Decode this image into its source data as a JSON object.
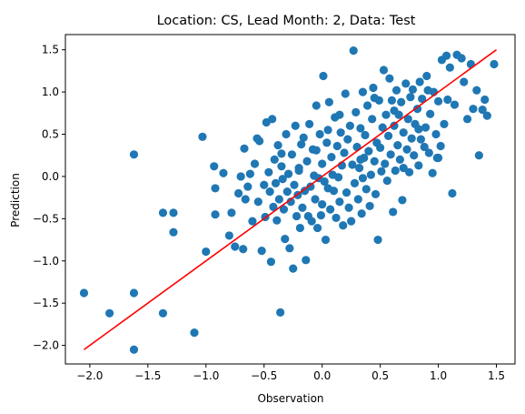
{
  "chart_data": {
    "type": "scatter",
    "title": "Location: CS, Lead Month: 2, Data: Test",
    "xlabel": "Observation",
    "ylabel": "Prediction",
    "xlim": [
      -2.21,
      1.66
    ],
    "ylim": [
      -2.22,
      1.68
    ],
    "xticks": [
      -2.0,
      -1.5,
      -1.0,
      -0.5,
      0.0,
      0.5,
      1.0,
      1.5
    ],
    "xtick_labels": [
      "−2.0",
      "−1.5",
      "−1.0",
      "−0.5",
      "0.0",
      "0.5",
      "1.0",
      "1.5"
    ],
    "yticks": [
      -2.0,
      -1.5,
      -1.0,
      -0.5,
      0.0,
      0.5,
      1.0,
      1.5
    ],
    "yticick_note": "",
    "ytick_labels": [
      "−2.0",
      "−1.5",
      "−1.0",
      "−0.5",
      "0.0",
      "0.5",
      "1.0",
      "1.5"
    ],
    "grid": false,
    "colors": {
      "points": "#1f77b4",
      "line": "#ff0000"
    },
    "fit_line": {
      "x": [
        -2.05,
        1.5
      ],
      "y": [
        -2.05,
        1.5
      ]
    },
    "points": [
      [
        -2.05,
        -1.38
      ],
      [
        -1.83,
        -1.62
      ],
      [
        -1.62,
        -1.38
      ],
      [
        -1.62,
        -2.05
      ],
      [
        -1.62,
        0.26
      ],
      [
        -1.37,
        -1.62
      ],
      [
        -1.37,
        -0.43
      ],
      [
        -1.28,
        -0.43
      ],
      [
        -1.28,
        -0.66
      ],
      [
        -1.1,
        -1.85
      ],
      [
        -1.03,
        0.47
      ],
      [
        -1.0,
        -0.89
      ],
      [
        -0.93,
        0.12
      ],
      [
        -0.92,
        -0.45
      ],
      [
        -0.92,
        -0.14
      ],
      [
        -0.85,
        0.04
      ],
      [
        -0.8,
        -0.7
      ],
      [
        -0.78,
        -0.43
      ],
      [
        -0.75,
        -0.83
      ],
      [
        -0.72,
        -0.2
      ],
      [
        -0.7,
        0.0
      ],
      [
        -0.68,
        -0.86
      ],
      [
        -0.67,
        0.33
      ],
      [
        -0.66,
        -0.27
      ],
      [
        -0.64,
        -0.12
      ],
      [
        -0.62,
        0.03
      ],
      [
        -0.6,
        -0.53
      ],
      [
        -0.58,
        0.15
      ],
      [
        -0.56,
        0.45
      ],
      [
        -0.55,
        -0.3
      ],
      [
        -0.54,
        0.42
      ],
      [
        -0.52,
        -0.88
      ],
      [
        -0.5,
        -0.1
      ],
      [
        -0.49,
        -0.48
      ],
      [
        -0.48,
        0.64
      ],
      [
        -0.46,
        0.05
      ],
      [
        -0.45,
        -0.18
      ],
      [
        -0.44,
        -1.01
      ],
      [
        -0.43,
        0.68
      ],
      [
        -0.42,
        -0.36
      ],
      [
        -0.41,
        0.2
      ],
      [
        -0.4,
        -0.08
      ],
      [
        -0.39,
        -0.52
      ],
      [
        -0.38,
        0.37
      ],
      [
        -0.37,
        -0.27
      ],
      [
        -0.36,
        -1.61
      ],
      [
        -0.35,
        0.12
      ],
      [
        -0.34,
        -0.03
      ],
      [
        -0.33,
        -0.39
      ],
      [
        -0.32,
        -0.74
      ],
      [
        -0.31,
        0.5
      ],
      [
        -0.3,
        -0.18
      ],
      [
        -0.29,
        0.03
      ],
      [
        -0.28,
        -0.85
      ],
      [
        -0.27,
        -0.3
      ],
      [
        -0.26,
        0.26
      ],
      [
        -0.25,
        -1.09
      ],
      [
        -0.24,
        -0.1
      ],
      [
        -0.23,
        0.6
      ],
      [
        -0.22,
        -0.47
      ],
      [
        -0.21,
        -0.22
      ],
      [
        -0.2,
        0.07
      ],
      [
        -0.19,
        -0.61
      ],
      [
        -0.18,
        0.38
      ],
      [
        -0.17,
        -0.37
      ],
      [
        -0.16,
        0.46
      ],
      [
        -0.15,
        -0.17
      ],
      [
        -0.14,
        -0.99
      ],
      [
        -0.13,
        0.18
      ],
      [
        -0.12,
        -0.47
      ],
      [
        -0.11,
        0.62
      ],
      [
        -0.1,
        -0.12
      ],
      [
        -0.09,
        -0.53
      ],
      [
        -0.08,
        0.32
      ],
      [
        -0.07,
        0.01
      ],
      [
        -0.06,
        -0.27
      ],
      [
        -0.05,
        0.84
      ],
      [
        -0.04,
        -0.61
      ],
      [
        -0.03,
        -0.02
      ],
      [
        -0.02,
        0.5
      ],
      [
        -0.01,
        -0.46
      ],
      [
        0.0,
        0.15
      ],
      [
        0.0,
        -0.33
      ],
      [
        0.01,
        1.19
      ],
      [
        0.02,
        -0.06
      ],
      [
        0.03,
        -0.75
      ],
      [
        0.04,
        0.4
      ],
      [
        0.05,
        -0.14
      ],
      [
        0.06,
        0.88
      ],
      [
        0.07,
        -0.39
      ],
      [
        0.08,
        0.23
      ],
      [
        0.09,
        0.02
      ],
      [
        0.1,
        -0.17
      ],
      [
        0.11,
        0.7
      ],
      [
        0.12,
        -0.49
      ],
      [
        0.13,
        0.36
      ],
      [
        0.14,
        -0.01
      ],
      [
        0.15,
        -0.3
      ],
      [
        0.16,
        0.52
      ],
      [
        0.17,
        0.13
      ],
      [
        0.18,
        -0.58
      ],
      [
        0.19,
        0.28
      ],
      [
        0.2,
        0.98
      ],
      [
        0.21,
        -0.19
      ],
      [
        0.22,
        0.44
      ],
      [
        0.23,
        -0.37
      ],
      [
        0.24,
        0.6
      ],
      [
        0.25,
        -0.53
      ],
      [
        0.26,
        0.14
      ],
      [
        0.27,
        1.49
      ],
      [
        0.28,
        -0.08
      ],
      [
        0.29,
        0.76
      ],
      [
        0.3,
        0.35
      ],
      [
        0.31,
        -0.27
      ],
      [
        0.32,
        0.1
      ],
      [
        0.33,
        0.57
      ],
      [
        0.34,
        -0.44
      ],
      [
        0.35,
        1.0
      ],
      [
        0.36,
        0.22
      ],
      [
        0.37,
        0.49
      ],
      [
        0.38,
        -0.15
      ],
      [
        0.39,
        0.84
      ],
      [
        0.4,
        0.3
      ],
      [
        0.41,
        -0.35
      ],
      [
        0.42,
        0.02
      ],
      [
        0.43,
        0.68
      ],
      [
        0.44,
        1.05
      ],
      [
        0.45,
        0.18
      ],
      [
        0.46,
        -0.21
      ],
      [
        0.47,
        0.4
      ],
      [
        0.48,
        -0.75
      ],
      [
        0.49,
        0.9
      ],
      [
        0.5,
        0.34
      ],
      [
        0.51,
        0.06
      ],
      [
        0.52,
        0.58
      ],
      [
        0.53,
        1.26
      ],
      [
        0.54,
        0.15
      ],
      [
        0.55,
        0.73
      ],
      [
        0.56,
        -0.05
      ],
      [
        0.57,
        0.48
      ],
      [
        0.58,
        1.16
      ],
      [
        0.59,
        0.26
      ],
      [
        0.6,
        0.9
      ],
      [
        0.61,
        -0.42
      ],
      [
        0.62,
        0.6
      ],
      [
        0.63,
        0.07
      ],
      [
        0.64,
        1.02
      ],
      [
        0.65,
        0.37
      ],
      [
        0.66,
        0.73
      ],
      [
        0.67,
        0.2
      ],
      [
        0.68,
        0.88
      ],
      [
        0.69,
        -0.28
      ],
      [
        0.7,
        0.52
      ],
      [
        0.72,
        1.1
      ],
      [
        0.73,
        0.32
      ],
      [
        0.74,
        0.68
      ],
      [
        0.75,
        0.05
      ],
      [
        0.76,
        0.94
      ],
      [
        0.77,
        0.45
      ],
      [
        0.78,
        1.03
      ],
      [
        0.79,
        0.25
      ],
      [
        0.8,
        0.62
      ],
      [
        0.82,
        0.8
      ],
      [
        0.83,
        0.13
      ],
      [
        0.84,
        1.12
      ],
      [
        0.85,
        0.44
      ],
      [
        0.86,
        0.92
      ],
      [
        0.88,
        0.35
      ],
      [
        0.89,
        0.58
      ],
      [
        0.9,
        1.19
      ],
      [
        0.92,
        0.28
      ],
      [
        0.93,
        0.74
      ],
      [
        0.95,
        0.04
      ],
      [
        0.96,
        1.0
      ],
      [
        0.98,
        0.5
      ],
      [
        0.99,
        0.22
      ],
      [
        1.0,
        0.89
      ],
      [
        1.02,
        0.36
      ],
      [
        1.03,
        1.38
      ],
      [
        1.05,
        0.62
      ],
      [
        1.07,
        1.43
      ],
      [
        1.08,
        0.91
      ],
      [
        1.1,
        1.29
      ],
      [
        1.12,
        -0.2
      ],
      [
        1.14,
        0.85
      ],
      [
        1.16,
        1.44
      ],
      [
        1.2,
        1.4
      ],
      [
        1.22,
        1.12
      ],
      [
        1.25,
        0.68
      ],
      [
        1.28,
        1.33
      ],
      [
        1.3,
        0.8
      ],
      [
        1.33,
        1.02
      ],
      [
        1.35,
        0.25
      ],
      [
        1.38,
        0.79
      ],
      [
        1.4,
        0.91
      ],
      [
        1.42,
        0.72
      ],
      [
        1.48,
        1.33
      ],
      [
        0.83,
        0.56
      ],
      [
        0.62,
        0.78
      ],
      [
        0.45,
        0.93
      ],
      [
        0.33,
        0.2
      ],
      [
        0.15,
        0.73
      ],
      [
        -0.05,
        0.31
      ],
      [
        -0.2,
        0.1
      ],
      [
        -0.35,
        0.27
      ],
      [
        0.7,
        0.1
      ],
      [
        0.91,
        1.02
      ],
      [
        1.0,
        0.22
      ],
      [
        0.35,
        -0.02
      ],
      [
        0.05,
        0.55
      ]
    ]
  }
}
